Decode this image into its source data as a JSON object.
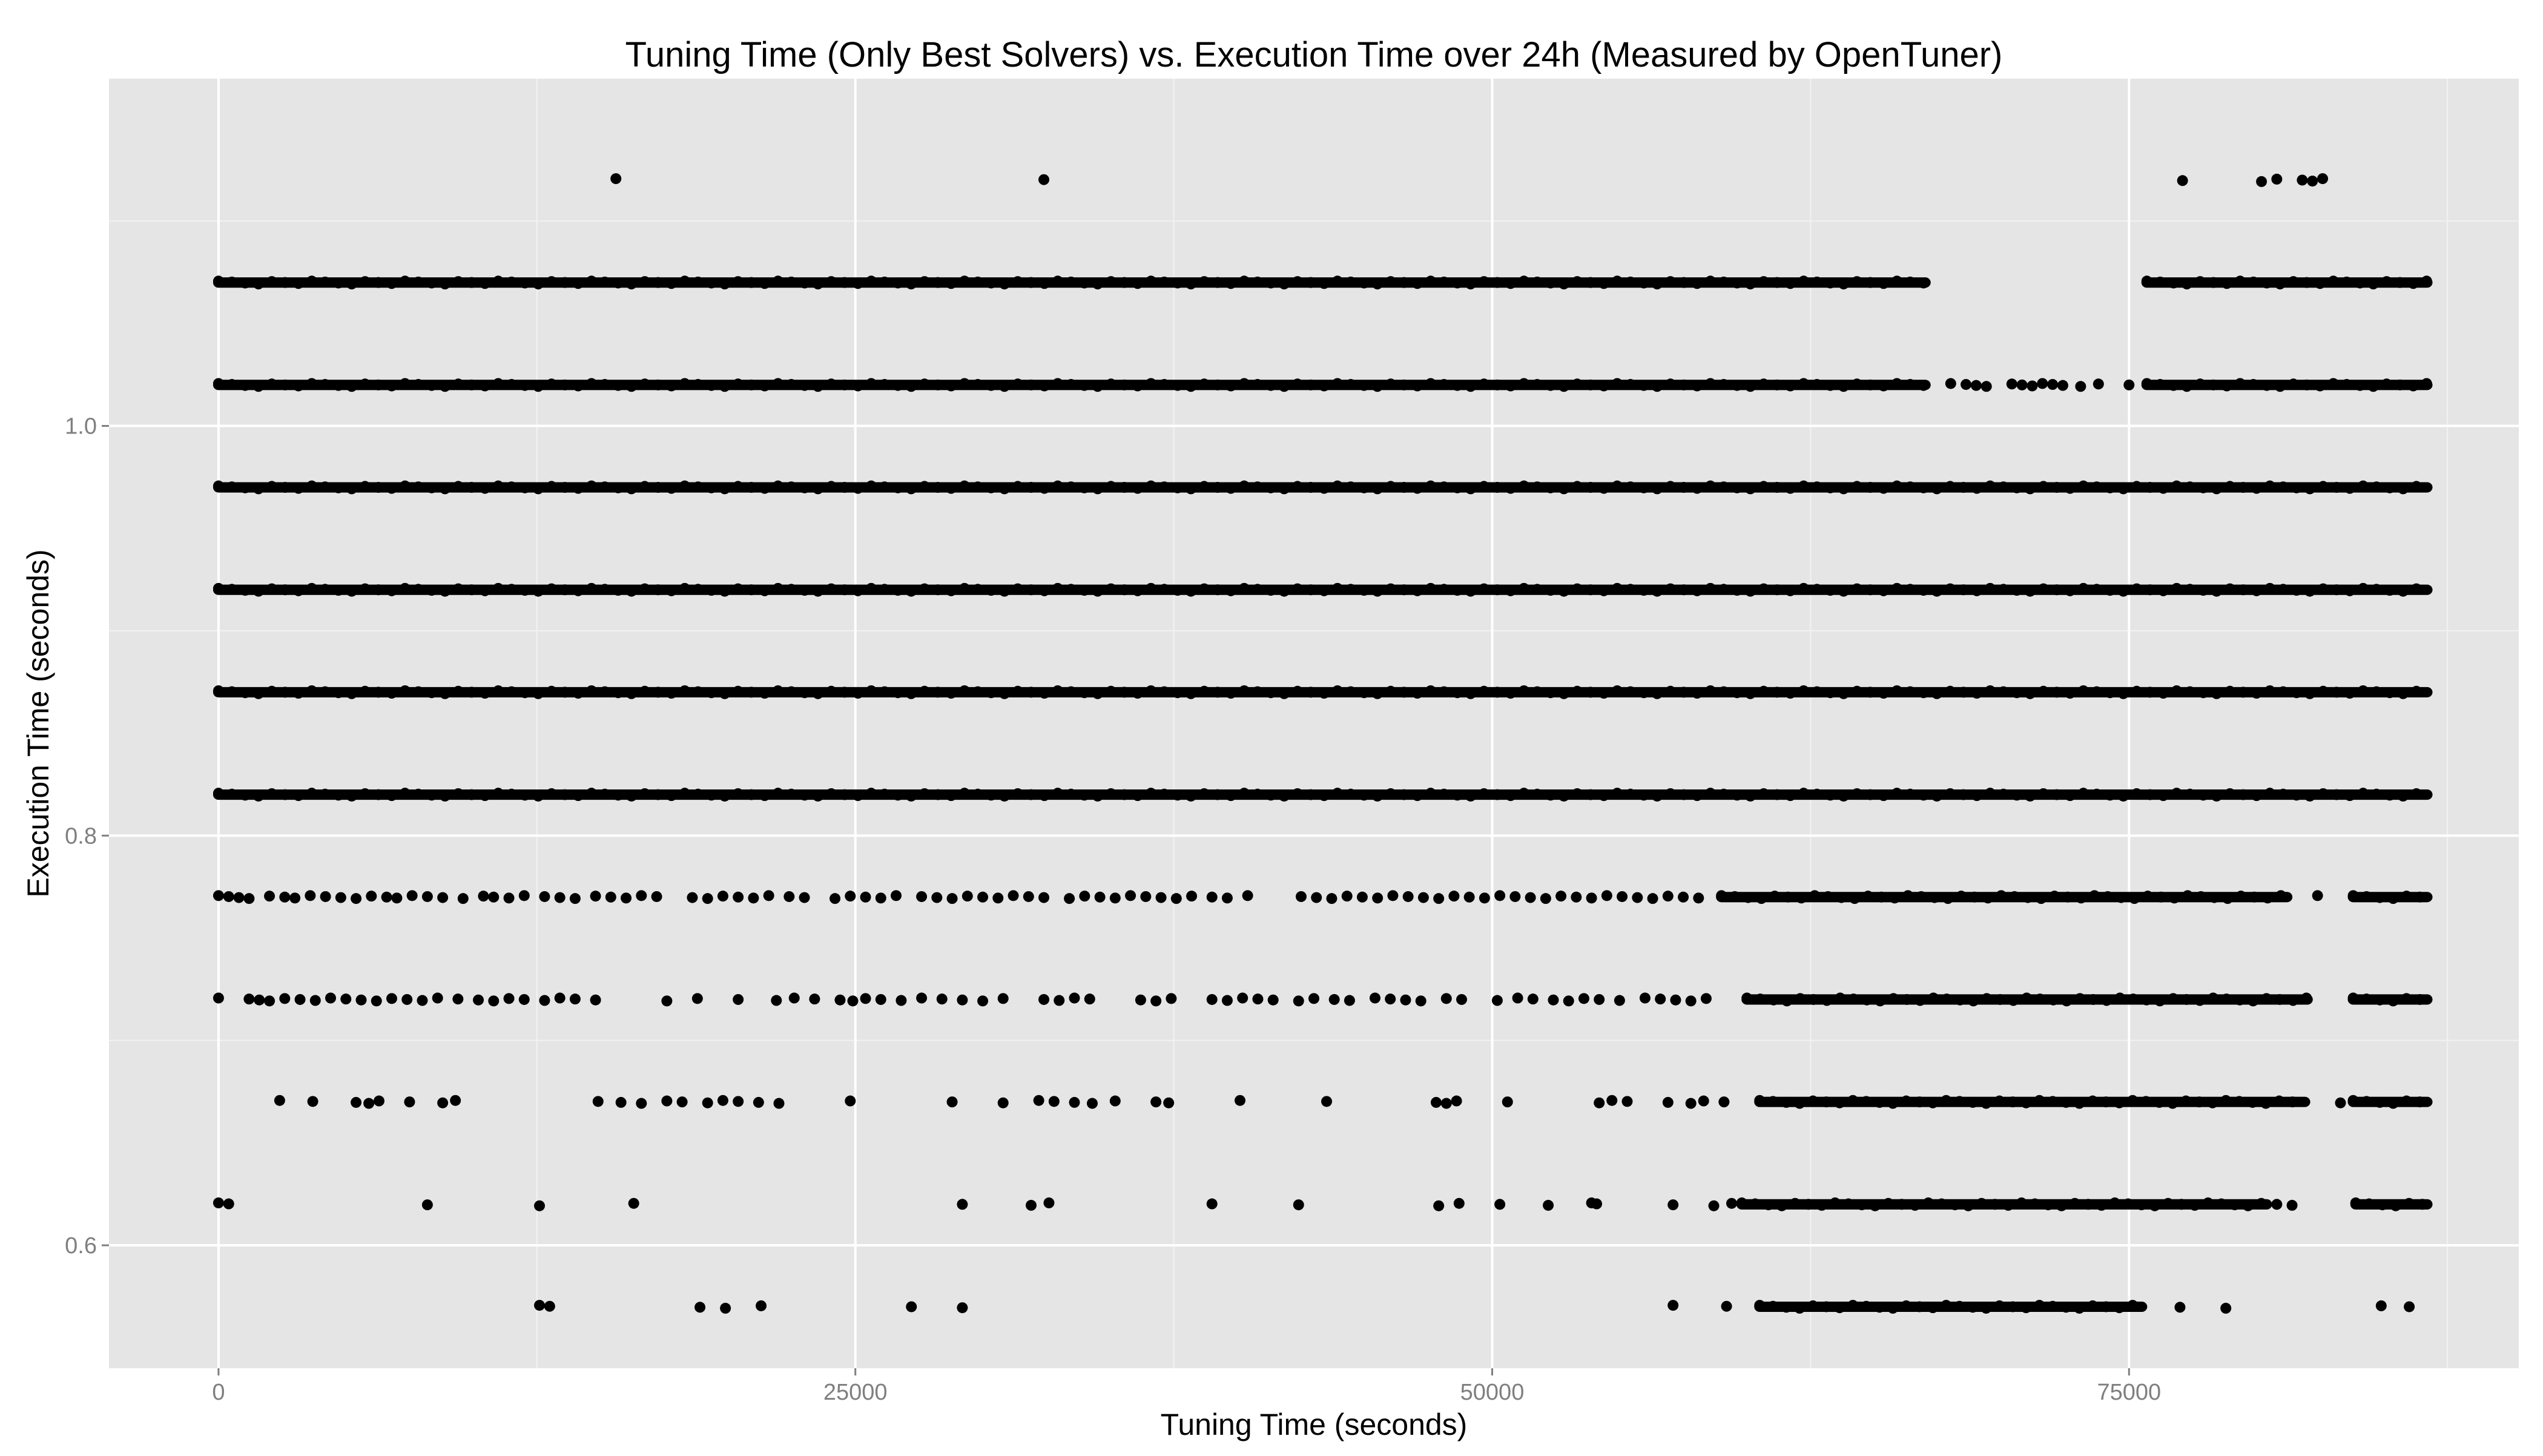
{
  "chart_data": {
    "type": "scatter",
    "title": "Tuning Time (Only Best Solvers) vs. Execution Time over 24h (Measured by OpenTuner)",
    "xlabel": "Tuning Time (seconds)",
    "ylabel": "Execution Time (seconds)",
    "xlim": [
      -4300,
      90300
    ],
    "ylim": [
      0.54,
      1.1695
    ],
    "x_ticks": [
      0,
      25000,
      50000,
      75000
    ],
    "x_tick_labels": [
      "0",
      "25000",
      "50000",
      "75000"
    ],
    "y_ticks": [
      0.6,
      0.8,
      1.0
    ],
    "y_tick_labels": [
      "0.6",
      "0.8",
      "1.0"
    ],
    "grid": true,
    "legend": "none",
    "colors": {
      "panel": "#e5e5e5",
      "grid_major": "#ffffff",
      "grid_minor": "#f2f2f2",
      "points": "#000000",
      "tick_text": "#7f7f7f",
      "text": "#000000"
    },
    "series": [
      {
        "label": "1.12",
        "y": 1.12,
        "segments": [],
        "points": [
          15600,
          32400,
          77100,
          80200,
          80800,
          81800,
          82200,
          82600
        ]
      },
      {
        "label": "1.07",
        "y": 1.07,
        "segments": [
          [
            0,
            67000
          ],
          [
            75700,
            86700
          ]
        ],
        "points": []
      },
      {
        "label": "1.02",
        "y": 1.02,
        "segments": [
          [
            0,
            67000
          ],
          [
            75700,
            86700
          ]
        ],
        "points": [
          68000,
          68600,
          69000,
          69400,
          70400,
          70800,
          71200,
          71600,
          72000,
          72400,
          73100,
          73800,
          75000
        ]
      },
      {
        "label": "0.97",
        "y": 0.97,
        "segments": [
          [
            0,
            86700
          ]
        ],
        "points": []
      },
      {
        "label": "0.92",
        "y": 0.92,
        "segments": [
          [
            0,
            86700
          ]
        ],
        "points": []
      },
      {
        "label": "0.87",
        "y": 0.87,
        "segments": [
          [
            0,
            86700
          ]
        ],
        "points": []
      },
      {
        "label": "0.82",
        "y": 0.82,
        "segments": [
          [
            0,
            86700
          ]
        ],
        "points": []
      },
      {
        "label": "0.77",
        "y": 0.77,
        "segments": [
          [
            59000,
            81200
          ],
          [
            83800,
            86700
          ]
        ],
        "points": [
          0,
          400,
          800,
          1200,
          2000,
          2600,
          3000,
          3600,
          4200,
          4800,
          5400,
          6000,
          6600,
          7000,
          7600,
          8200,
          8800,
          9600,
          10400,
          10800,
          11400,
          12000,
          12800,
          13400,
          14000,
          14800,
          15400,
          16000,
          16600,
          17200,
          18600,
          19200,
          19800,
          20400,
          21000,
          21600,
          22400,
          23000,
          24200,
          24800,
          25400,
          26000,
          26600,
          27600,
          28200,
          28800,
          29400,
          30000,
          30600,
          31200,
          31800,
          32400,
          33400,
          34000,
          34600,
          35200,
          35800,
          36400,
          37000,
          37600,
          38200,
          39000,
          39600,
          40400,
          42500,
          43100,
          43700,
          44300,
          44900,
          45500,
          46100,
          46700,
          47300,
          47900,
          48500,
          49100,
          49700,
          50300,
          50900,
          51500,
          52100,
          52700,
          53300,
          53900,
          54500,
          55100,
          55700,
          56300,
          56900,
          57500,
          58100,
          82400
        ]
      },
      {
        "label": "0.72",
        "y": 0.72,
        "segments": [
          [
            60000,
            82000
          ],
          [
            83800,
            86700
          ]
        ],
        "points": [
          0,
          1200,
          1600,
          2000,
          2600,
          3200,
          3800,
          4400,
          5000,
          5600,
          6200,
          6800,
          7400,
          8000,
          8600,
          9400,
          10200,
          10800,
          11400,
          12000,
          12800,
          13400,
          14000,
          14800,
          17600,
          18800,
          20400,
          21900,
          22600,
          23400,
          24400,
          24900,
          25400,
          26000,
          26800,
          27600,
          28400,
          29200,
          30000,
          30800,
          32400,
          33000,
          33600,
          34200,
          36200,
          36800,
          37400,
          39000,
          39600,
          40200,
          40800,
          41400,
          42400,
          43000,
          43800,
          44400,
          45400,
          46000,
          46600,
          47200,
          48200,
          48800,
          50200,
          51000,
          51600,
          52400,
          53000,
          53600,
          54200,
          55000,
          56000,
          56600,
          57200,
          57800,
          58400
        ]
      },
      {
        "label": "0.67",
        "y": 0.67,
        "segments": [
          [
            60500,
            81900
          ],
          [
            83800,
            86700
          ]
        ],
        "points": [
          2400,
          3700,
          5400,
          5900,
          6300,
          7500,
          8800,
          9300,
          14900,
          15800,
          16600,
          17600,
          18200,
          19200,
          19800,
          20400,
          21200,
          22000,
          24800,
          28800,
          30800,
          32200,
          32800,
          33600,
          34300,
          35200,
          36800,
          37300,
          40100,
          43500,
          47800,
          48200,
          48600,
          50600,
          54200,
          54700,
          55300,
          56900,
          57800,
          58300,
          59100,
          83300
        ]
      },
      {
        "label": "0.62",
        "y": 0.62,
        "segments": [
          [
            59800,
            80400
          ],
          [
            83900,
            86700
          ]
        ],
        "points": [
          0,
          400,
          8200,
          12600,
          16300,
          29200,
          31900,
          32600,
          39000,
          42400,
          47900,
          48700,
          50300,
          52200,
          53900,
          54100,
          57100,
          58700,
          59400,
          80800,
          81400
        ]
      },
      {
        "label": "0.57",
        "y": 0.57,
        "segments": [
          [
            60500,
            75500
          ]
        ],
        "points": [
          12600,
          13000,
          18900,
          19900,
          21300,
          27200,
          29200,
          57100,
          59200,
          77000,
          78800,
          84900,
          86000
        ]
      }
    ]
  }
}
